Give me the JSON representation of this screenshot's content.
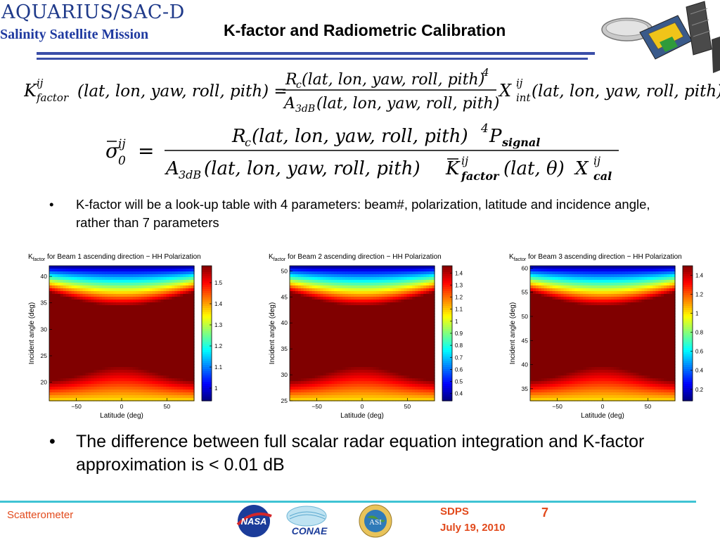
{
  "header": {
    "logo_text": "AQUARIUS/SAC-D",
    "mission": "Salinity Satellite Mission",
    "title": "K-factor and Radiometric Calibration"
  },
  "bullets": {
    "bullet_char": "•",
    "b1": "K-factor will be a look-up table with 4 parameters: beam#, polarization, latitude and incidence angle, rather than 7 parameters",
    "b2": "The difference between full scalar radar equation integration and K-factor approximation is < 0.01 dB"
  },
  "chart_data": [
    {
      "type": "heatmap",
      "title": "K_factor for Beam 1 ascending direction − HH Polarization",
      "xlabel": "Latitude (deg)",
      "ylabel": "Incident angle (deg)",
      "xlim": [
        -80,
        80
      ],
      "ylim": [
        16.5,
        42
      ],
      "xticks": [
        -50,
        0,
        50
      ],
      "yticks": [
        20,
        25,
        30,
        35,
        40
      ],
      "colorbar_ticks": [
        1,
        1.1,
        1.2,
        1.3,
        1.4,
        1.5
      ],
      "colorbar_range": [
        0.94,
        1.58
      ],
      "colormap": "jet"
    },
    {
      "type": "heatmap",
      "title": "K_factor for Beam 2 ascending direction − HH Polarization",
      "xlabel": "Latitude (deg)",
      "ylabel": "Incident angle (deg)",
      "xlim": [
        -80,
        80
      ],
      "ylim": [
        25,
        51
      ],
      "xticks": [
        -50,
        0,
        50
      ],
      "yticks": [
        25,
        30,
        35,
        40,
        45,
        50
      ],
      "colorbar_ticks": [
        0.4,
        0.5,
        0.6,
        0.7,
        0.8,
        0.9,
        1,
        1.1,
        1.2,
        1.3,
        1.4
      ],
      "colorbar_range": [
        0.34,
        1.46
      ],
      "colormap": "jet"
    },
    {
      "type": "heatmap",
      "title": "K_factor for Beam 3 ascending direction − HH Polarization",
      "xlabel": "Latitude (deg)",
      "ylabel": "Incident angle (deg)",
      "xlim": [
        -80,
        80
      ],
      "ylim": [
        32.5,
        60.5
      ],
      "xticks": [
        -50,
        0,
        50
      ],
      "yticks": [
        35,
        40,
        45,
        50,
        55,
        60
      ],
      "colorbar_ticks": [
        0.2,
        0.4,
        0.6,
        0.8,
        1,
        1.2,
        1.4
      ],
      "colorbar_range": [
        0.08,
        1.5
      ],
      "colormap": "jet"
    }
  ],
  "footer": {
    "left": "Scatterometer",
    "sdps": "SDPS",
    "date": "July 19, 2010",
    "page": "7",
    "logo1": "NASA",
    "logo2": "CONAE",
    "logo3": "ASI",
    "accent": "#e24a1c",
    "rule_color": "#3fc3d4"
  },
  "colors": {
    "title_blue": "#1f3aa0",
    "rule_blue": "#3a4ea8"
  }
}
